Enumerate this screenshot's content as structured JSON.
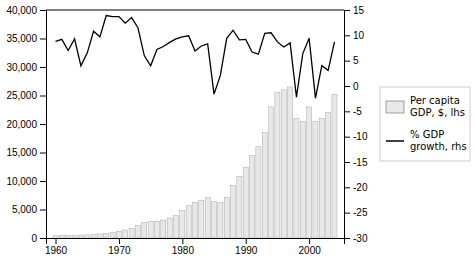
{
  "chart_data": {
    "type": "bar",
    "x": [
      1960,
      1961,
      1962,
      1963,
      1964,
      1965,
      1966,
      1967,
      1968,
      1969,
      1970,
      1971,
      1972,
      1973,
      1974,
      1975,
      1976,
      1977,
      1978,
      1979,
      1980,
      1981,
      1982,
      1983,
      1984,
      1985,
      1986,
      1987,
      1988,
      1989,
      1990,
      1991,
      1992,
      1993,
      1994,
      1995,
      1996,
      1997,
      1998,
      1999,
      2000,
      2001,
      2002,
      2003,
      2004
    ],
    "series": [
      {
        "name": "Per capita\nGDP, $, lhs",
        "type": "bar",
        "color": "#e8e8e8",
        "values": [
          430,
          450,
          470,
          500,
          520,
          550,
          620,
          700,
          820,
          950,
          1150,
          1400,
          1700,
          2200,
          2700,
          2850,
          2950,
          3150,
          3500,
          3900,
          4800,
          5700,
          6200,
          6600,
          7100,
          6400,
          6200,
          7100,
          9200,
          10800,
          12400,
          14500,
          16000,
          18500,
          23000,
          25500,
          26000,
          26500,
          21000,
          20500,
          23000,
          20500,
          21000,
          22000,
          25200
        ]
      },
      {
        "name": "% GDP\ngrowth, rhs",
        "type": "line",
        "color": "#000000",
        "axis": "y2",
        "values": [
          8.8,
          9.2,
          7.0,
          9.3,
          4.0,
          6.5,
          10.8,
          9.7,
          13.9,
          13.7,
          13.7,
          12.4,
          13.5,
          11.5,
          6.0,
          4.0,
          7.2,
          7.8,
          8.6,
          9.3,
          9.7,
          9.9,
          6.9,
          7.9,
          8.3,
          -1.6,
          2.1,
          9.4,
          11.0,
          9.1,
          9.2,
          6.7,
          6.3,
          10.4,
          10.5,
          8.7,
          7.7,
          8.5,
          -2.2,
          6.4,
          9.4,
          -2.4,
          4.0,
          3.1,
          8.7
        ]
      }
    ],
    "xlim": [
      1958.5,
      2005.5
    ],
    "xticks": [
      1960,
      1970,
      1980,
      1990,
      2000
    ],
    "ylim": [
      0,
      40000
    ],
    "yticks": [
      0,
      {
        "value": 5000,
        "label": "5,000"
      },
      {
        "value": 10000,
        "label": "10,000"
      },
      {
        "value": 15000,
        "label": "15,000"
      },
      {
        "value": 20000,
        "label": "20,000"
      },
      {
        "value": 25000,
        "label": "25,000"
      },
      {
        "value": 30000,
        "label": "30,000"
      },
      {
        "value": 35000,
        "label": "35,000"
      },
      {
        "value": 40000,
        "label": "40,000"
      }
    ],
    "y2lim": [
      -30,
      15
    ],
    "y2ticks": [
      -30,
      -25,
      -20,
      -15,
      -10,
      -5,
      0,
      5,
      10,
      15
    ],
    "grid": false,
    "legend": "right"
  }
}
